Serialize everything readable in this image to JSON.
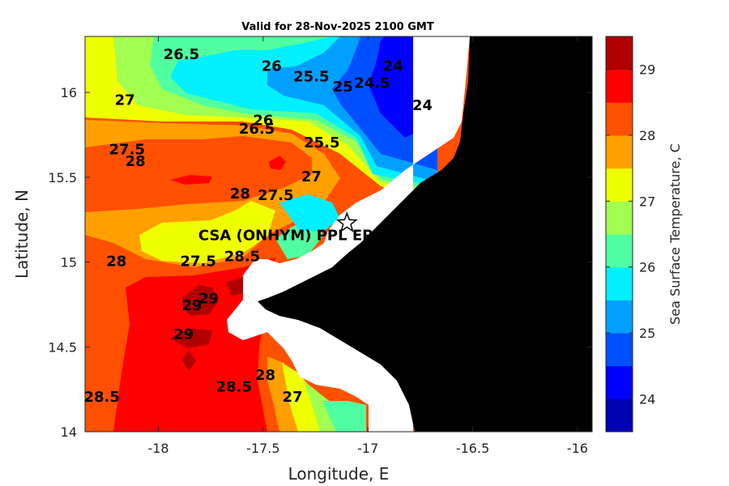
{
  "chart_data": {
    "type": "heatmap",
    "title": "Valid for 28-Nov-2025 2100 GMT",
    "xlabel": "Longitude, E",
    "ylabel": "Latitude, N",
    "xlim": [
      -18.35,
      -15.93
    ],
    "ylim": [
      14.0,
      16.33
    ],
    "xticks": [
      -18,
      -17.5,
      -17,
      -16.5,
      -16
    ],
    "xtick_labels": [
      "-18",
      "-17.5",
      "-17",
      "-16.5",
      "-16"
    ],
    "yticks": [
      14,
      14.5,
      15,
      15.5,
      16
    ],
    "ytick_labels": [
      "14",
      "14.5",
      "15",
      "15.5",
      "16"
    ],
    "colorbar": {
      "label": "Sea Surface Temperature, C",
      "range": [
        23.5,
        29.5
      ],
      "ticks": [
        24,
        25,
        26,
        27,
        28,
        29
      ],
      "tick_labels": [
        "24",
        "25",
        "26",
        "27",
        "28",
        "29"
      ],
      "levels": [
        {
          "from": 23.5,
          "to": 24.0,
          "color": "#0000b4"
        },
        {
          "from": 24.0,
          "to": 24.5,
          "color": "#0000ff"
        },
        {
          "from": 24.5,
          "to": 25.0,
          "color": "#0050ff"
        },
        {
          "from": 25.0,
          "to": 25.5,
          "color": "#00a0ff"
        },
        {
          "from": 25.5,
          "to": 26.0,
          "color": "#00f0ff"
        },
        {
          "from": 26.0,
          "to": 26.5,
          "color": "#50ffa0"
        },
        {
          "from": 26.5,
          "to": 27.0,
          "color": "#a0ff50"
        },
        {
          "from": 27.0,
          "to": 27.5,
          "color": "#f0ff00"
        },
        {
          "from": 27.5,
          "to": 28.0,
          "color": "#ffa000"
        },
        {
          "from": 28.0,
          "to": 28.5,
          "color": "#ff5000"
        },
        {
          "from": 28.5,
          "to": 29.0,
          "color": "#ff0000"
        },
        {
          "from": 29.0,
          "to": 29.5,
          "color": "#b00000"
        }
      ]
    },
    "contour_labels": [
      {
        "text": "26.5",
        "lon": -17.89,
        "lat": 16.22
      },
      {
        "text": "26",
        "lon": -17.46,
        "lat": 16.15
      },
      {
        "text": "25.5",
        "lon": -17.27,
        "lat": 16.09
      },
      {
        "text": "25",
        "lon": -17.12,
        "lat": 16.03
      },
      {
        "text": "24.5",
        "lon": -16.98,
        "lat": 16.05
      },
      {
        "text": "24",
        "lon": -16.88,
        "lat": 16.15
      },
      {
        "text": "24",
        "lon": -16.74,
        "lat": 15.92
      },
      {
        "text": "27",
        "lon": -18.16,
        "lat": 15.95
      },
      {
        "text": "27.5",
        "lon": -18.15,
        "lat": 15.66
      },
      {
        "text": "28",
        "lon": -18.11,
        "lat": 15.59
      },
      {
        "text": "26",
        "lon": -17.5,
        "lat": 15.83
      },
      {
        "text": "26.5",
        "lon": -17.53,
        "lat": 15.78
      },
      {
        "text": "25.5",
        "lon": -17.22,
        "lat": 15.7
      },
      {
        "text": "27",
        "lon": -17.27,
        "lat": 15.5
      },
      {
        "text": "28",
        "lon": -17.61,
        "lat": 15.4
      },
      {
        "text": "27.5",
        "lon": -17.44,
        "lat": 15.39
      },
      {
        "text": "28",
        "lon": -18.2,
        "lat": 15.0
      },
      {
        "text": "27.5",
        "lon": -17.81,
        "lat": 15.0
      },
      {
        "text": "28.5",
        "lon": -17.6,
        "lat": 15.03
      },
      {
        "text": "29",
        "lon": -17.76,
        "lat": 14.78
      },
      {
        "text": "29",
        "lon": -17.84,
        "lat": 14.74
      },
      {
        "text": "29",
        "lon": -17.88,
        "lat": 14.57
      },
      {
        "text": "28.5",
        "lon": -18.27,
        "lat": 14.2
      },
      {
        "text": "28.5",
        "lon": -17.64,
        "lat": 14.26
      },
      {
        "text": "28",
        "lon": -17.49,
        "lat": 14.33
      },
      {
        "text": "27",
        "lon": -17.36,
        "lat": 14.2
      }
    ],
    "annotation": {
      "text": "CSA (ONHYM) PPL EP",
      "lon": -17.1,
      "lat": 15.23,
      "marker": "star"
    }
  }
}
